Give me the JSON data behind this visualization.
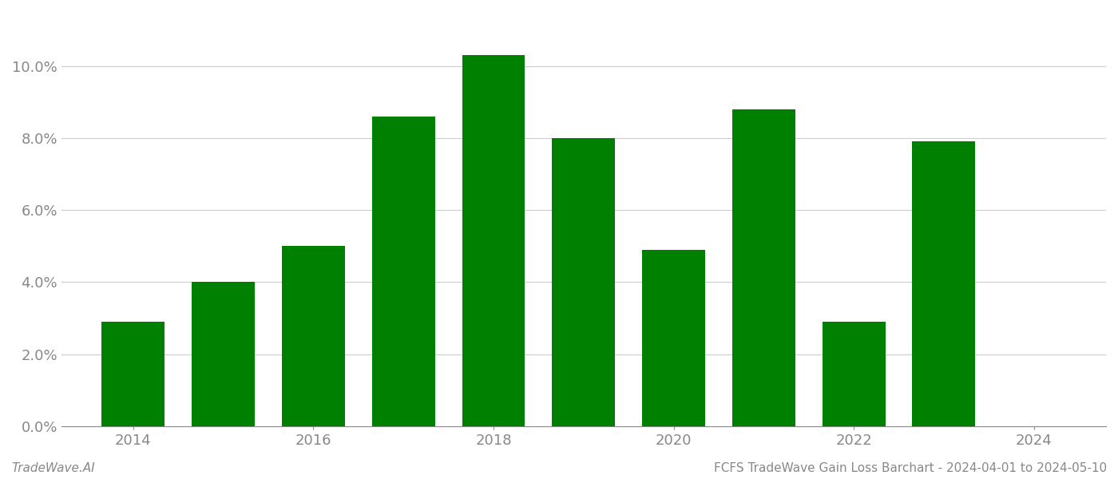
{
  "years": [
    2014,
    2015,
    2016,
    2017,
    2018,
    2019,
    2020,
    2021,
    2022,
    2023
  ],
  "values": [
    0.029,
    0.04,
    0.05,
    0.086,
    0.103,
    0.08,
    0.049,
    0.088,
    0.029,
    0.079
  ],
  "bar_color": "#008000",
  "ylim": [
    0,
    0.115
  ],
  "yticks": [
    0.0,
    0.02,
    0.04,
    0.06,
    0.08,
    0.1
  ],
  "xlim": [
    2013.2,
    2024.8
  ],
  "xticks": [
    2014,
    2016,
    2018,
    2020,
    2022,
    2024
  ],
  "bar_width": 0.7,
  "title": "FCFS TradeWave Gain Loss Barchart - 2024-04-01 to 2024-05-10",
  "watermark_left": "TradeWave.AI",
  "background_color": "#ffffff",
  "grid_color": "#cccccc",
  "axis_label_color": "#888888",
  "watermark_color": "#888888",
  "tick_fontsize": 13,
  "footer_fontsize": 11
}
